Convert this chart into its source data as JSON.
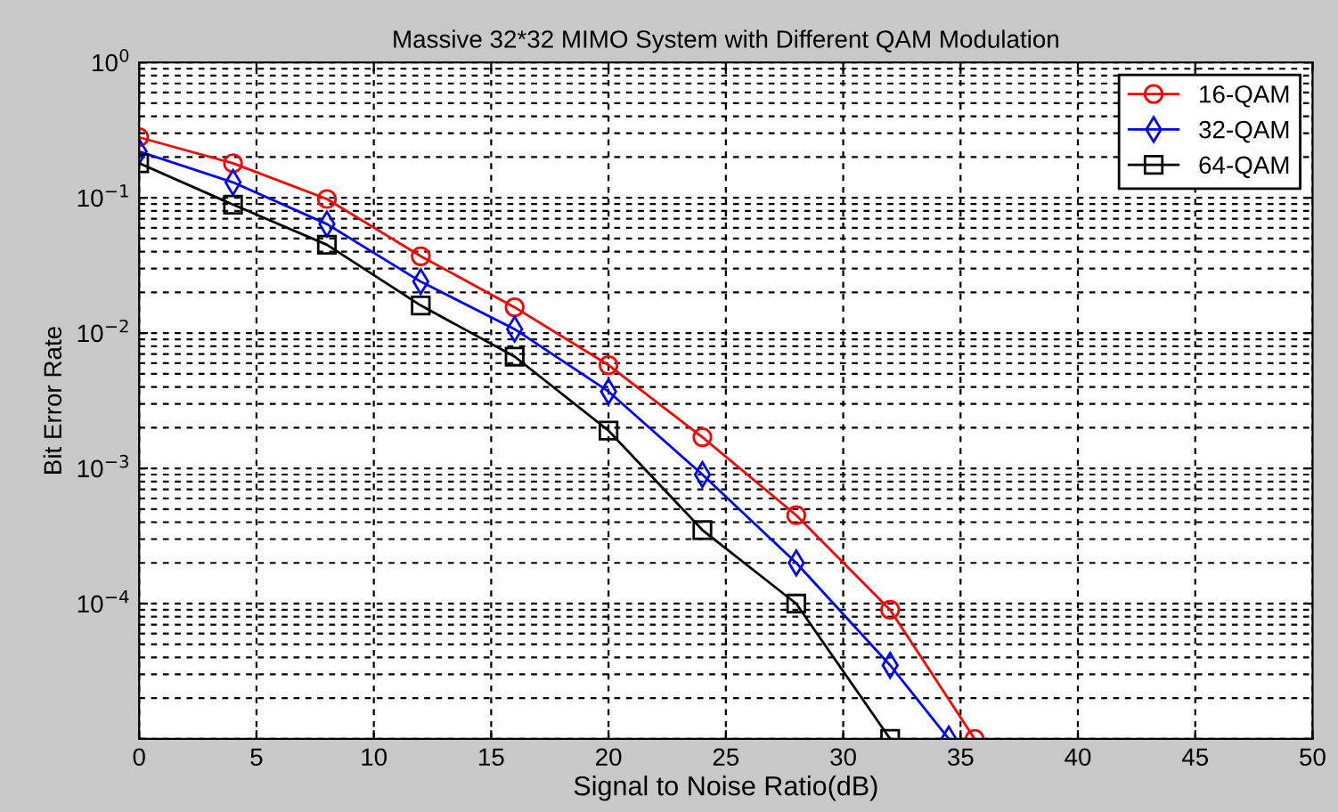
{
  "chart_data": {
    "type": "line",
    "title": "Massive 32*32 MIMO System with Different QAM Modulation",
    "xlabel": "Signal to Noise Ratio(dB)",
    "ylabel": "Bit Error Rate",
    "x": [
      0,
      4,
      8,
      12,
      16,
      20,
      24,
      28,
      32
    ],
    "series": [
      {
        "name": "16-QAM",
        "color": "#ff0000",
        "marker": "circle",
        "x": [
          0,
          4,
          8,
          12,
          16,
          20,
          24,
          28,
          32,
          35.6
        ],
        "values": [
          0.28,
          0.18,
          0.098,
          0.037,
          0.0155,
          0.0058,
          0.0017,
          0.00045,
          9e-05,
          1e-05
        ]
      },
      {
        "name": "32-QAM",
        "color": "#0000ff",
        "marker": "diamond",
        "x": [
          0,
          4,
          8,
          12,
          16,
          20,
          24,
          28,
          32,
          34.5
        ],
        "values": [
          0.22,
          0.13,
          0.064,
          0.024,
          0.0107,
          0.0037,
          0.0009,
          0.0002,
          3.5e-05,
          1e-05
        ]
      },
      {
        "name": "64-QAM",
        "color": "#000000",
        "marker": "square",
        "values": [
          0.18,
          0.089,
          0.045,
          0.016,
          0.0067,
          0.0019,
          0.00035,
          0.0001,
          1e-05
        ]
      }
    ],
    "log": "y",
    "xlim": [
      0,
      50
    ],
    "xticks": [
      0,
      5,
      10,
      15,
      20,
      25,
      30,
      35,
      40,
      45,
      50
    ],
    "ylim": [
      1e-05,
      1
    ],
    "yticks": [
      {
        "value": 1,
        "label": "10$^{0}$"
      },
      {
        "value": 0.1,
        "label": "10$^{−1}$"
      },
      {
        "value": 0.01,
        "label": "10$^{−2}$"
      },
      {
        "value": 0.001,
        "label": "10$^{−3}$"
      },
      {
        "value": 0.0001,
        "label": "10$^{−4}$"
      },
      {
        "value": 1e-05,
        "label": null
      }
    ],
    "grid": true,
    "legend": "top right",
    "line_style": "solid"
  }
}
